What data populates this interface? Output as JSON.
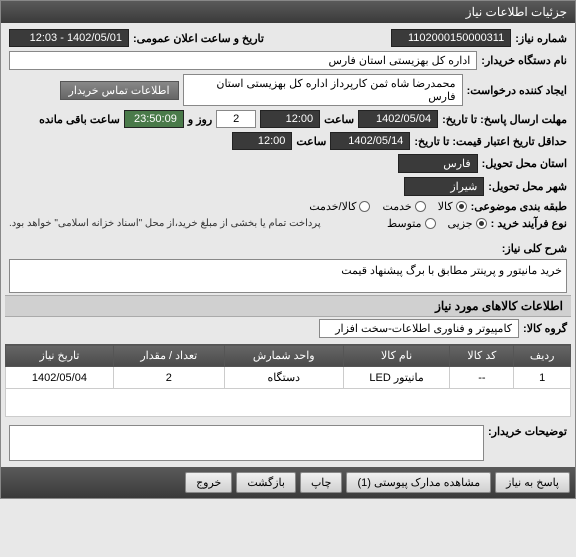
{
  "window": {
    "title": "جزئیات اطلاعات نیاز"
  },
  "header": {
    "need_no_label": "شماره نیاز:",
    "need_no": "1102000150000311",
    "announce_label": "تاریخ و ساعت اعلان عمومی:",
    "announce_value": "1402/05/01 - 12:03",
    "buyer_label": "نام دستگاه خریدار:",
    "buyer_value": "اداره کل بهزیستی استان فارس",
    "creator_label": "ایجاد کننده درخواست:",
    "creator_value": "محمدرضا شاه ثمن کارپرداز اداره کل بهزیستی استان فارس",
    "contact_btn": "اطلاعات تماس خریدار",
    "deadline_label": "مهلت ارسال پاسخ: تا تاریخ:",
    "deadline_date": "1402/05/04",
    "time_label": "ساعت",
    "deadline_time": "12:00",
    "days_label": "روز و",
    "days_value": "2",
    "remain_time": "23:50:09",
    "remain_label": "ساعت باقی مانده",
    "validity_label": "حداقل تاریخ اعتبار قیمت: تا تاریخ:",
    "validity_date": "1402/05/14",
    "validity_time": "12:00",
    "province_label": "استان محل تحویل:",
    "province_value": "فارس",
    "city_label": "شهر محل تحویل:",
    "city_value": "شیراز",
    "category_label": "طبقه بندی موضوعی:",
    "cat_kala": "کالا",
    "cat_khadamat": "خدمت",
    "cat_kala_khadamat": "کالا/خدمت",
    "process_label": "نوع فرآیند خرید :",
    "proc_jozi": "جزیی",
    "proc_motevaset": "متوسط",
    "note_text": "پرداخت تمام یا بخشی از مبلغ خرید،از محل \"اسناد خزانه اسلامی\" خواهد بود."
  },
  "desc": {
    "label": "شرح کلی نیاز:",
    "value": "خرید مانیتور و پرینتر مطابق با برگ پیشنهاد قیمت"
  },
  "goods": {
    "section_title": "اطلاعات کالاهای مورد نیاز",
    "group_label": "گروه کالا:",
    "group_value": "کامپیوتر و فناوری اطلاعات-سخت افزار",
    "cols": {
      "row": "ردیف",
      "code": "کد کالا",
      "name": "نام کالا",
      "unit": "واحد شمارش",
      "qty": "تعداد / مقدار",
      "date": "تاریخ نیاز"
    },
    "rows": [
      {
        "row": "1",
        "code": "--",
        "name": "مانیتور LED",
        "unit": "دستگاه",
        "qty": "2",
        "date": "1402/05/04"
      }
    ]
  },
  "comments": {
    "label": "توضیحات خریدار:"
  },
  "footer": {
    "respond": "پاسخ به نیاز",
    "attachments": "مشاهده مدارک پیوستی (1)",
    "print": "چاپ",
    "back": "بازگشت",
    "exit": "خروج"
  }
}
